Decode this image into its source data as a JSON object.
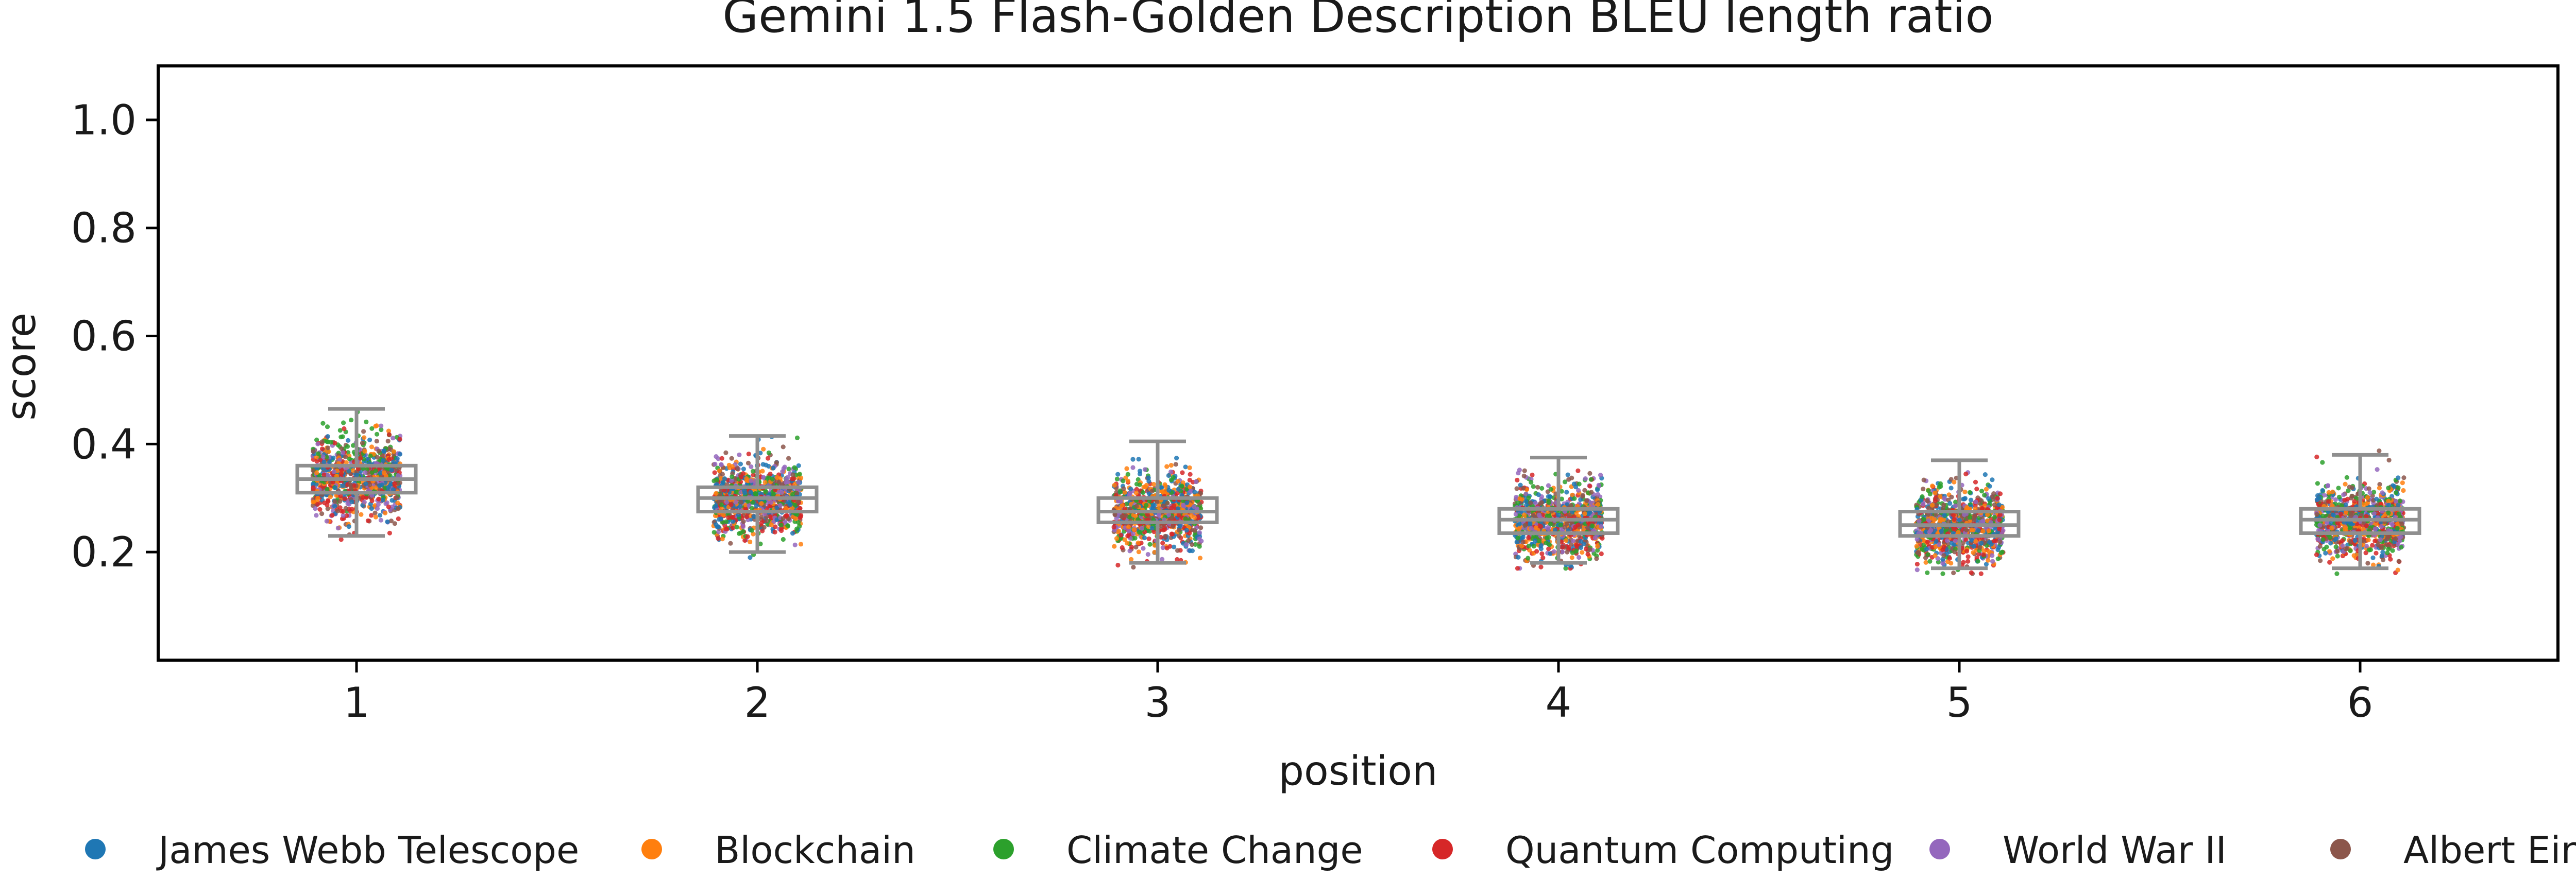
{
  "chart_data": {
    "type": "scatter",
    "title": "Gemini 1.5 Flash-Golden Description BLEU length ratio",
    "xlabel": "position",
    "ylabel": "score",
    "categories": [
      "1",
      "2",
      "3",
      "4",
      "5",
      "6"
    ],
    "yticks": [
      "0.2",
      "0.4",
      "0.6",
      "0.8",
      "1.0"
    ],
    "ylim": [
      0.0,
      1.1
    ],
    "grid": false,
    "legend_position": "bottom",
    "series": [
      {
        "name": "James Webb Telescope",
        "color": "#1f77b4"
      },
      {
        "name": "Blockchain",
        "color": "#ff7f0e"
      },
      {
        "name": "Climate Change",
        "color": "#2ca02c"
      },
      {
        "name": "Quantum Computing",
        "color": "#d62728"
      },
      {
        "name": "World War II",
        "color": "#9467bd"
      },
      {
        "name": "Albert Einstein",
        "color": "#8c564b"
      }
    ],
    "boxplot_color": "#8f8f8f",
    "boxes": [
      {
        "position": "1",
        "whisker_low": 0.23,
        "q1": 0.31,
        "median": 0.335,
        "q3": 0.36,
        "whisker_high": 0.465,
        "point_range": [
          0.22,
          0.49
        ]
      },
      {
        "position": "2",
        "whisker_low": 0.2,
        "q1": 0.275,
        "median": 0.3,
        "q3": 0.32,
        "whisker_high": 0.415,
        "point_range": [
          0.19,
          0.44
        ]
      },
      {
        "position": "3",
        "whisker_low": 0.18,
        "q1": 0.255,
        "median": 0.275,
        "q3": 0.3,
        "whisker_high": 0.405,
        "point_range": [
          0.16,
          0.43
        ]
      },
      {
        "position": "4",
        "whisker_low": 0.18,
        "q1": 0.235,
        "median": 0.26,
        "q3": 0.28,
        "whisker_high": 0.375,
        "point_range": [
          0.17,
          0.4
        ]
      },
      {
        "position": "5",
        "whisker_low": 0.17,
        "q1": 0.23,
        "median": 0.25,
        "q3": 0.275,
        "whisker_high": 0.37,
        "point_range": [
          0.16,
          0.43
        ]
      },
      {
        "position": "6",
        "whisker_low": 0.17,
        "q1": 0.235,
        "median": 0.26,
        "q3": 0.28,
        "whisker_high": 0.38,
        "point_range": [
          0.16,
          0.43
        ]
      }
    ]
  }
}
